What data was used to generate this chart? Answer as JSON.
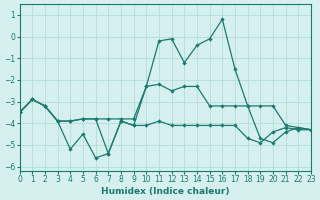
{
  "xlabel": "Humidex (Indice chaleur)",
  "xlim": [
    0,
    23
  ],
  "ylim": [
    -6.2,
    1.5
  ],
  "yticks": [
    1,
    0,
    -1,
    -2,
    -3,
    -4,
    -5,
    -6
  ],
  "xticks": [
    0,
    1,
    2,
    3,
    4,
    5,
    6,
    7,
    8,
    9,
    10,
    11,
    12,
    13,
    14,
    15,
    16,
    17,
    18,
    19,
    20,
    21,
    22,
    23
  ],
  "background_color": "#d6f0f0",
  "grid_color": "#b8dede",
  "line_color": "#1a7a6e",
  "line1_x": [
    0,
    1,
    2,
    3,
    4,
    5,
    6,
    7,
    8,
    9,
    10,
    11,
    12,
    13,
    14,
    15,
    16,
    17,
    18,
    19,
    20,
    21,
    22,
    23
  ],
  "line1_y": [
    -3.5,
    -2.9,
    -3.2,
    -3.9,
    -5.2,
    -4.5,
    -5.6,
    -5.4,
    -3.9,
    -4.1,
    -4.1,
    -3.9,
    -4.1,
    -4.1,
    -4.1,
    -4.1,
    -4.1,
    -4.1,
    -4.7,
    -4.9,
    -4.4,
    -4.2,
    -4.3,
    -4.3
  ],
  "line2_x": [
    0,
    1,
    2,
    3,
    4,
    5,
    6,
    7,
    8,
    9,
    10,
    11,
    12,
    13,
    14,
    15,
    16,
    17,
    18,
    19,
    20,
    21,
    22,
    23
  ],
  "line2_y": [
    -3.5,
    -2.9,
    -3.2,
    -3.9,
    -3.9,
    -3.8,
    -3.8,
    -5.4,
    -3.9,
    -4.1,
    -2.3,
    -0.2,
    -0.1,
    -1.2,
    -0.4,
    -0.1,
    0.8,
    -1.5,
    -3.2,
    -4.7,
    -4.9,
    -4.4,
    -4.2,
    -4.3
  ],
  "line3_x": [
    0,
    1,
    2,
    3,
    4,
    5,
    6,
    7,
    8,
    9,
    10,
    11,
    12,
    13,
    14,
    15,
    16,
    17,
    18,
    19,
    20,
    21,
    22,
    23
  ],
  "line3_y": [
    -3.5,
    -2.9,
    -3.2,
    -3.9,
    -3.9,
    -3.8,
    -3.8,
    -3.8,
    -3.8,
    -3.8,
    -2.3,
    -2.2,
    -2.5,
    -2.3,
    -2.3,
    -3.2,
    -3.2,
    -3.2,
    -3.2,
    -3.2,
    -3.2,
    -4.1,
    -4.2,
    -4.3
  ]
}
